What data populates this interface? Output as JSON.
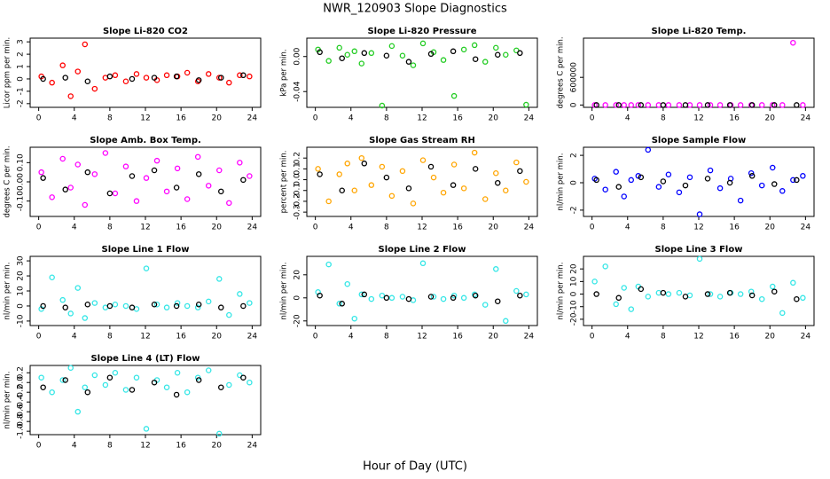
{
  "title": "NWR_120903  Slope Diagnostics",
  "xlabel": "Hour of Day (UTC)",
  "chart_data": [
    {
      "type": "scatter",
      "title": "Slope Li-820 CO2",
      "ylabel": "Licor ppm per min.",
      "xlim": [
        -0.96,
        24.96
      ],
      "xticks": [
        0,
        4,
        8,
        12,
        16,
        20,
        24
      ],
      "ylim": [
        -2.3,
        3.3
      ],
      "yticks": [
        -2,
        -1,
        0,
        1,
        2,
        3
      ],
      "series": [
        {
          "color": "#ff0000",
          "x": [
            0.3,
            1.5,
            2.7,
            3.6,
            4.4,
            5.2,
            6.3,
            7.5,
            8.6,
            9.8,
            11,
            12.1,
            13.3,
            14.4,
            15.6,
            16.7,
            17.9,
            19.1,
            20.3,
            21.4,
            22.6,
            23.7
          ],
          "values": [
            0.2,
            -0.3,
            1.1,
            -1.4,
            0.6,
            2.8,
            -0.8,
            0.1,
            0.3,
            -0.2,
            0.4,
            0.1,
            -0.1,
            0.3,
            0.2,
            0.5,
            -0.2,
            0.4,
            0.1,
            -0.3,
            0.3,
            0.2
          ]
        },
        {
          "color": "#000000",
          "x": [
            0.5,
            3,
            5.5,
            8,
            10.5,
            13,
            15.5,
            18,
            20.5,
            23
          ],
          "values": [
            0,
            0.1,
            -0.2,
            0.2,
            0,
            0.1,
            0.2,
            -0.1,
            0.1,
            0.3
          ]
        }
      ]
    },
    {
      "type": "scatter",
      "title": "Slope Li-820 Pressure",
      "ylabel": "kPa per min.",
      "xlim": [
        -0.96,
        24.96
      ],
      "xticks": [
        0,
        4,
        8,
        12,
        16,
        20,
        24
      ],
      "ylim": [
        -0.058,
        0.021
      ],
      "yticks": [
        {
          "value": -0.04,
          "label": "-0.04"
        },
        {
          "value": 0,
          "label": "0.00"
        }
      ],
      "series": [
        {
          "color": "#22cc22",
          "x": [
            0.3,
            1.5,
            2.7,
            3.6,
            4.4,
            5.2,
            6.3,
            7.5,
            8.6,
            9.8,
            11,
            12.1,
            13.3,
            14.4,
            15.6,
            16.7,
            17.9,
            19.1,
            20.3,
            21.4,
            22.6,
            23.7
          ],
          "values": [
            0.008,
            -0.005,
            0.01,
            0.002,
            0.006,
            -0.008,
            0.004,
            -0.056,
            0.012,
            0.001,
            -0.01,
            0.015,
            0.005,
            -0.004,
            -0.045,
            0.008,
            0.013,
            -0.006,
            0.01,
            0.002,
            0.007,
            -0.055
          ]
        },
        {
          "color": "#000000",
          "x": [
            0.5,
            3,
            5.5,
            8,
            10.5,
            13,
            15.5,
            18,
            20.5,
            23
          ],
          "values": [
            0.005,
            -0.002,
            0.004,
            0.001,
            -0.006,
            0.003,
            0.006,
            -0.003,
            0.002,
            0.004
          ]
        }
      ]
    },
    {
      "type": "scatter",
      "title": "Slope Li-820 Temp.",
      "ylabel": "degrees C per min.",
      "xlim": [
        -0.96,
        24.96
      ],
      "xticks": [
        0,
        4,
        8,
        12,
        16,
        20,
        24
      ],
      "ylim": [
        -50000,
        1450000
      ],
      "yticks": [
        0,
        600000
      ],
      "series": [
        {
          "color": "#ff00ff",
          "x": [
            0.3,
            1.5,
            2.7,
            3.6,
            4.4,
            5.2,
            6.3,
            7.5,
            8.6,
            9.8,
            11,
            12.1,
            13.3,
            14.4,
            15.6,
            16.7,
            17.9,
            19.1,
            20.3,
            21.4,
            22.6,
            23.7
          ],
          "values": [
            0,
            0,
            0,
            0,
            0,
            0,
            0,
            0,
            0,
            0,
            0,
            0,
            0,
            0,
            0,
            0,
            0,
            0,
            0,
            0,
            1350000,
            0
          ]
        },
        {
          "color": "#000000",
          "x": [
            0.5,
            3,
            5.5,
            8,
            10.5,
            13,
            15.5,
            18,
            20.5,
            23
          ],
          "values": [
            0,
            0,
            0,
            0,
            0,
            0,
            0,
            0,
            0,
            0
          ]
        }
      ]
    },
    {
      "type": "scatter",
      "title": "Slope Amb. Box Temp.",
      "ylabel": "degrees C per min.",
      "xlim": [
        -0.96,
        24.96
      ],
      "xticks": [
        0,
        4,
        8,
        12,
        16,
        20,
        24
      ],
      "ylim": [
        -0.18,
        0.18
      ],
      "yticks": [
        {
          "value": -0.1,
          "label": "-0.10"
        },
        {
          "value": 0,
          "label": "0.00"
        },
        {
          "value": 0.1,
          "label": "0.10"
        }
      ],
      "series": [
        {
          "color": "#ff00ff",
          "x": [
            0.3,
            1.5,
            2.7,
            3.6,
            4.4,
            5.2,
            6.3,
            7.5,
            8.6,
            9.8,
            11,
            12.1,
            13.3,
            14.4,
            15.6,
            16.7,
            17.9,
            19.1,
            20.3,
            21.4,
            22.6,
            23.7
          ],
          "values": [
            0.05,
            -0.08,
            0.12,
            -0.03,
            0.09,
            -0.12,
            0.04,
            0.15,
            -0.06,
            0.08,
            -0.1,
            0.02,
            0.11,
            -0.05,
            0.07,
            -0.09,
            0.13,
            -0.02,
            0.06,
            -0.11,
            0.1,
            0.03
          ]
        },
        {
          "color": "#000000",
          "x": [
            0.5,
            3,
            5.5,
            8,
            10.5,
            13,
            15.5,
            18,
            20.5,
            23
          ],
          "values": [
            0.02,
            -0.04,
            0.05,
            -0.06,
            0.03,
            0.06,
            -0.03,
            0.04,
            -0.05,
            0.01
          ]
        }
      ]
    },
    {
      "type": "scatter",
      "title": "Slope Gas Stream RH",
      "ylabel": "percent per min.",
      "xlim": [
        -0.96,
        24.96
      ],
      "xticks": [
        0,
        4,
        8,
        12,
        16,
        20,
        24
      ],
      "ylim": [
        -0.34,
        0.3
      ],
      "yticks": [
        -0.3,
        -0.2,
        -0.1,
        {
          "value": 0,
          "label": "0.0"
        },
        0.1,
        0.2
      ],
      "series": [
        {
          "color": "#ffa500",
          "x": [
            0.3,
            1.5,
            2.7,
            3.6,
            4.4,
            5.2,
            6.3,
            7.5,
            8.6,
            9.8,
            11,
            12.1,
            13.3,
            14.4,
            15.6,
            16.7,
            17.9,
            19.1,
            20.3,
            21.4,
            22.6,
            23.7
          ],
          "values": [
            0.1,
            -0.2,
            0.05,
            0.15,
            -0.1,
            0.2,
            -0.05,
            0.12,
            -0.15,
            0.08,
            -0.22,
            0.18,
            0.02,
            -0.12,
            0.14,
            -0.08,
            0.25,
            -0.18,
            0.06,
            -0.1,
            0.16,
            -0.02
          ]
        },
        {
          "color": "#000000",
          "x": [
            0.5,
            3,
            5.5,
            8,
            10.5,
            13,
            15.5,
            18,
            20.5,
            23
          ],
          "values": [
            0.05,
            -0.1,
            0.15,
            0.02,
            -0.08,
            0.12,
            -0.05,
            0.1,
            -0.03,
            0.08
          ]
        }
      ]
    },
    {
      "type": "scatter",
      "title": "Slope Sample Flow",
      "ylabel": "nl/min per min.",
      "xlim": [
        -0.96,
        24.96
      ],
      "xticks": [
        0,
        4,
        8,
        12,
        16,
        20,
        24
      ],
      "ylim": [
        -2.46,
        2.59
      ],
      "yticks": [
        -2,
        0,
        2
      ],
      "series": [
        {
          "color": "#0000ff",
          "x": [
            0.3,
            1.5,
            2.7,
            3.6,
            4.4,
            5.2,
            6.3,
            7.5,
            8.6,
            9.8,
            11,
            12.1,
            13.3,
            14.4,
            15.6,
            16.7,
            17.9,
            19.1,
            20.3,
            21.4,
            22.6,
            23.7
          ],
          "values": [
            0.3,
            -0.5,
            0.8,
            -1,
            0.2,
            0.5,
            2.4,
            -0.3,
            0.6,
            -0.7,
            0.4,
            -2.3,
            0.9,
            -0.4,
            0.3,
            -1.3,
            0.7,
            -0.2,
            1.1,
            -0.6,
            0.2,
            0.5
          ]
        },
        {
          "color": "#000000",
          "x": [
            0.5,
            3,
            5.5,
            8,
            10.5,
            13,
            15.5,
            18,
            20.5,
            23
          ],
          "values": [
            0.2,
            -0.3,
            0.4,
            0.1,
            -0.2,
            0.3,
            0,
            0.5,
            -0.1,
            0.2
          ]
        }
      ]
    },
    {
      "type": "scatter",
      "title": "Slope Line 1 Flow",
      "ylabel": "nl/min per min.",
      "xlim": [
        -0.96,
        24.96
      ],
      "xticks": [
        0,
        4,
        8,
        12,
        16,
        20,
        24
      ],
      "ylim": [
        -13,
        33
      ],
      "yticks": [
        -10,
        0,
        10,
        20,
        30
      ],
      "series": [
        {
          "color": "#33e6e6",
          "x": [
            0.3,
            1.5,
            2.7,
            3.6,
            4.4,
            5.2,
            6.3,
            7.5,
            8.6,
            9.8,
            11,
            12.1,
            13.3,
            14.4,
            15.6,
            16.7,
            17.9,
            19.1,
            20.3,
            21.4,
            22.6,
            23.7
          ],
          "values": [
            -2,
            19,
            4,
            -5,
            12,
            -8,
            2,
            -1,
            1,
            0,
            -2,
            25,
            1,
            -1,
            2,
            0,
            -1,
            3,
            18,
            -6,
            8,
            2
          ]
        },
        {
          "color": "#000000",
          "x": [
            0.5,
            3,
            5.5,
            8,
            10.5,
            13,
            15.5,
            18,
            20.5,
            23
          ],
          "values": [
            0,
            -1,
            1,
            0,
            -1,
            1,
            0,
            1,
            -1,
            0
          ]
        }
      ]
    },
    {
      "type": "scatter",
      "title": "Slope Line 2 Flow",
      "ylabel": "nl/min per min.",
      "xlim": [
        -0.96,
        24.96
      ],
      "xticks": [
        0,
        4,
        8,
        12,
        16,
        20,
        24
      ],
      "ylim": [
        -24,
        36
      ],
      "yticks": [
        -20,
        0,
        20
      ],
      "series": [
        {
          "color": "#33e6e6",
          "x": [
            0.3,
            1.5,
            2.7,
            3.6,
            4.4,
            5.2,
            6.3,
            7.5,
            8.6,
            9.8,
            11,
            12.1,
            13.3,
            14.4,
            15.6,
            16.7,
            17.9,
            19.1,
            20.3,
            21.4,
            22.6,
            23.7
          ],
          "values": [
            5,
            29,
            -5,
            12,
            -18,
            3,
            -1,
            2,
            0,
            1,
            -2,
            30,
            1,
            -1,
            2,
            0,
            3,
            -6,
            25,
            -20,
            6,
            3
          ]
        },
        {
          "color": "#000000",
          "x": [
            0.5,
            3,
            5.5,
            8,
            10.5,
            13,
            15.5,
            18,
            20.5,
            23
          ],
          "values": [
            2,
            -5,
            3,
            0,
            -1,
            1,
            0,
            2,
            -3,
            2
          ]
        }
      ]
    },
    {
      "type": "scatter",
      "title": "Slope Line 3 Flow",
      "ylabel": "nl/min per min.",
      "xlim": [
        -0.96,
        24.96
      ],
      "xticks": [
        0,
        4,
        8,
        12,
        16,
        20,
        24
      ],
      "ylim": [
        -25,
        30
      ],
      "yticks": [
        -20,
        -10,
        0,
        10,
        20
      ],
      "series": [
        {
          "color": "#33e6e6",
          "x": [
            0.3,
            1.5,
            2.7,
            3.6,
            4.4,
            5.2,
            6.3,
            7.5,
            8.6,
            9.8,
            11,
            12.1,
            13.3,
            14.4,
            15.6,
            16.7,
            17.9,
            19.1,
            20.3,
            21.4,
            22.6,
            23.7
          ],
          "values": [
            10,
            22,
            -8,
            5,
            -12,
            6,
            -2,
            1,
            0,
            1,
            -1,
            28,
            0,
            -2,
            1,
            0,
            2,
            -4,
            6,
            -15,
            9,
            -3
          ]
        },
        {
          "color": "#000000",
          "x": [
            0.5,
            3,
            5.5,
            8,
            10.5,
            13,
            15.5,
            18,
            20.5,
            23
          ],
          "values": [
            0,
            -3,
            4,
            1,
            -2,
            0,
            1,
            -1,
            2,
            -4
          ]
        }
      ]
    },
    {
      "type": "scatter",
      "title": "Slope Line 4 (LT) Flow",
      "ylabel": "nl/min per min.",
      "xlim": [
        -0.96,
        24.96
      ],
      "xticks": [
        0,
        4,
        8,
        12,
        16,
        20,
        24
      ],
      "ylim": [
        -1.07,
        0.35
      ],
      "yticks": [
        {
          "value": -1,
          "label": "-1.0"
        },
        -0.8,
        -0.6,
        -0.4,
        -0.2,
        {
          "value": 0,
          "label": "0.0"
        },
        0.2
      ],
      "series": [
        {
          "color": "#33e6e6",
          "x": [
            0.3,
            1.5,
            2.7,
            3.6,
            4.4,
            5.2,
            6.3,
            7.5,
            8.6,
            9.8,
            11,
            12.1,
            13.3,
            14.4,
            15.6,
            16.7,
            17.9,
            19.1,
            20.3,
            21.4,
            22.6,
            23.7
          ],
          "values": [
            0.1,
            -0.2,
            0.05,
            0.3,
            -0.6,
            -0.1,
            0.15,
            -0.05,
            0.2,
            -0.15,
            0.1,
            -0.95,
            0.05,
            -0.1,
            0.2,
            -0.2,
            0.1,
            0.25,
            -1.05,
            -0.05,
            0.15,
            0
          ]
        },
        {
          "color": "#000000",
          "x": [
            0.5,
            3,
            5.5,
            8,
            10.5,
            13,
            15.5,
            18,
            20.5,
            23
          ],
          "values": [
            -0.1,
            0.05,
            -0.2,
            0.1,
            -0.15,
            0,
            -0.25,
            0.05,
            -0.1,
            0.1
          ]
        }
      ]
    }
  ]
}
